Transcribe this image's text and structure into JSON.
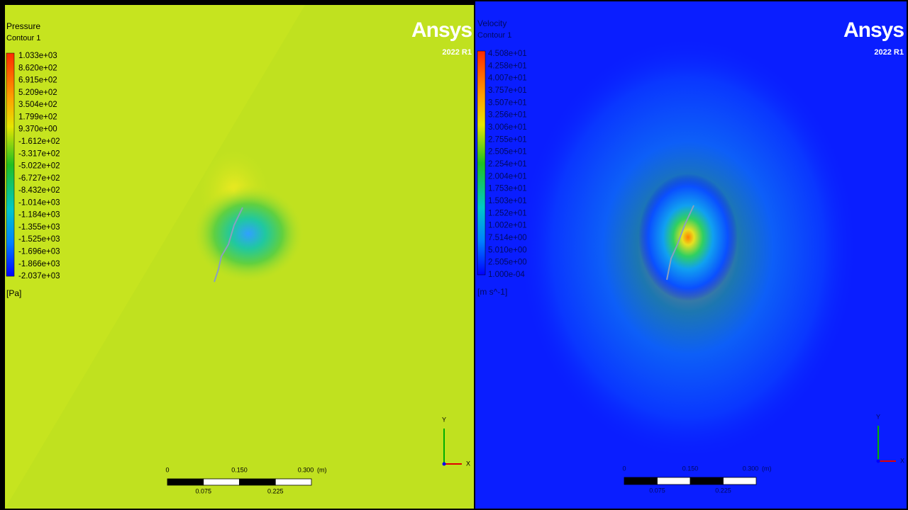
{
  "panels": [
    {
      "title": "Pressure",
      "subtitle": "Contour 1",
      "legend_labels": [
        "1.033e+03",
        "8.620e+02",
        "6.915e+02",
        "5.209e+02",
        "3.504e+02",
        "1.799e+02",
        "9.370e+00",
        "-1.612e+02",
        "-3.317e+02",
        "-5.022e+02",
        "-6.727e+02",
        "-8.432e+02",
        "-1.014e+03",
        "-1.184e+03",
        "-1.355e+03",
        "-1.525e+03",
        "-1.696e+03",
        "-1.866e+03",
        "-2.037e+03"
      ],
      "unit": "[Pa]",
      "logo": "Ansys",
      "version": "2022 R1",
      "scale_top": [
        "0",
        "0.150",
        "0.300",
        "(m)"
      ],
      "scale_bottom": [
        "0.075",
        "0.225"
      ],
      "axis_y": "Y",
      "axis_x": "X"
    },
    {
      "title": "Velocity",
      "subtitle": "Contour 1",
      "legend_labels": [
        "4.508e+01",
        "4.258e+01",
        "4.007e+01",
        "3.757e+01",
        "3.507e+01",
        "3.256e+01",
        "3.006e+01",
        "2.755e+01",
        "2.505e+01",
        "2.254e+01",
        "2.004e+01",
        "1.753e+01",
        "1.503e+01",
        "1.252e+01",
        "1.002e+01",
        "7.514e+00",
        "5.010e+00",
        "2.505e+00",
        "1.000e-04"
      ],
      "unit": "[m s^-1]",
      "logo": "Ansys",
      "version": "2022 R1",
      "scale_top": [
        "0",
        "0.150",
        "0.300",
        "(m)"
      ],
      "scale_bottom": [
        "0.075",
        "0.225"
      ],
      "axis_y": "Y",
      "axis_x": "X"
    }
  ]
}
